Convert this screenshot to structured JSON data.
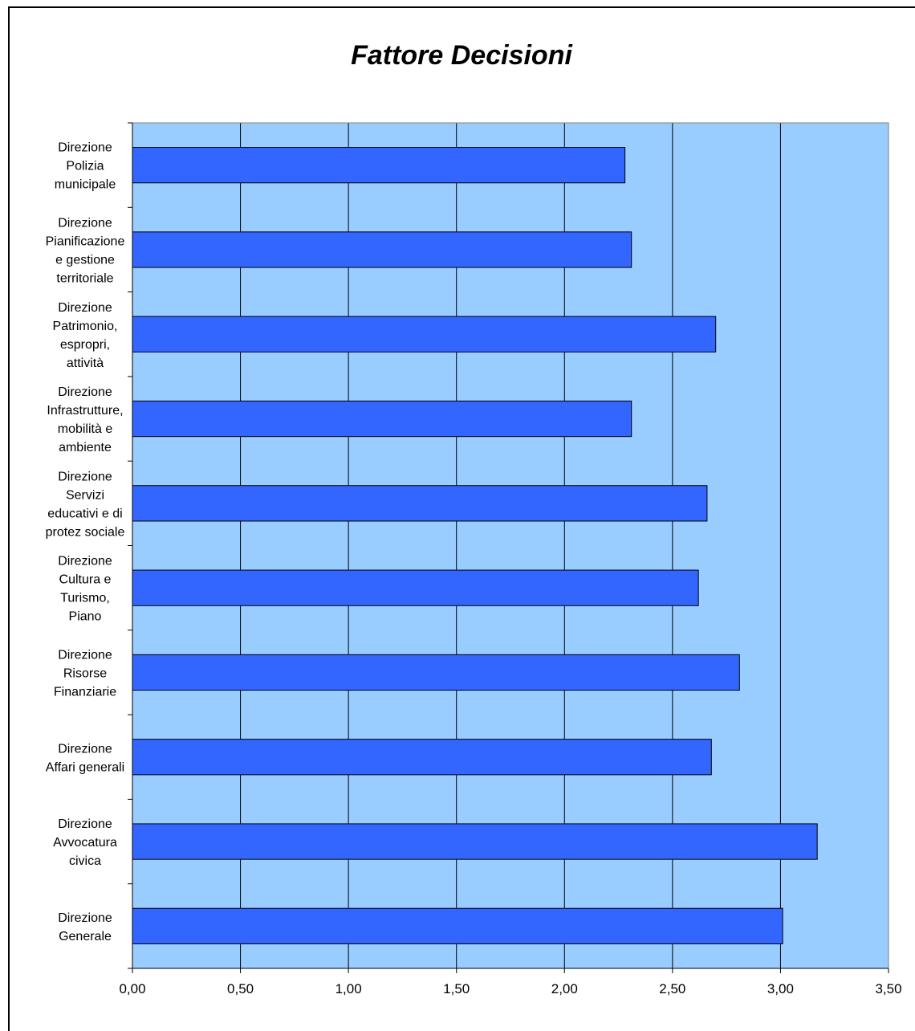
{
  "chart_data": {
    "type": "bar",
    "orientation": "horizontal",
    "title": "Fattore Decisioni",
    "xlabel": "",
    "ylabel": "",
    "xlim": [
      0,
      3.5
    ],
    "x_ticks": [
      "0,00",
      "0,50",
      "1,00",
      "1,50",
      "2,00",
      "2,50",
      "3,00",
      "3,50"
    ],
    "grid": true,
    "legend": "none",
    "categories": [
      [
        "Direzione",
        "Polizia",
        "municipale"
      ],
      [
        "Direzione",
        "Pianificazione",
        "e gestione",
        "territoriale"
      ],
      [
        "Direzione",
        "Patrimonio,",
        "espropri,",
        "attività"
      ],
      [
        "Direzione",
        "Infrastrutture,",
        "mobilità e",
        "ambiente"
      ],
      [
        "Direzione",
        "Servizi",
        "educativi e di",
        "protez sociale"
      ],
      [
        "Direzione",
        "Cultura e",
        "Turismo,",
        "Piano"
      ],
      [
        "Direzione",
        "Risorse",
        "Finanziarie"
      ],
      [
        "Direzione",
        "Affari generali"
      ],
      [
        "Direzione",
        "Avvocatura",
        "civica"
      ],
      [
        "Direzione",
        "Generale"
      ]
    ],
    "values": [
      2.28,
      2.31,
      2.7,
      2.31,
      2.66,
      2.62,
      2.81,
      2.68,
      3.17,
      3.01
    ],
    "colors": {
      "bar": "#3366ff",
      "plot_bg": "#99ccff",
      "grid": "#000000"
    }
  }
}
